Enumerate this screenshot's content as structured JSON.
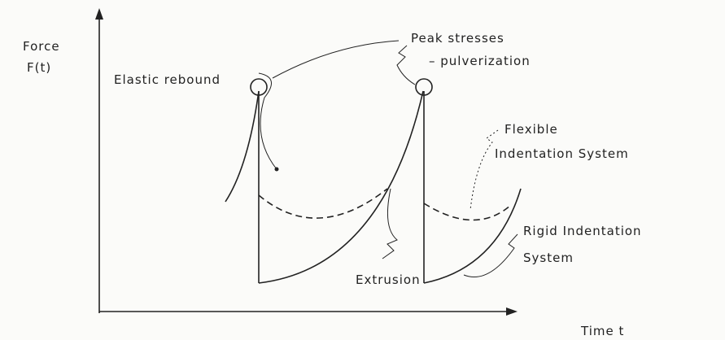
{
  "axes": {
    "y_label": [
      "Force",
      "F(t)"
    ],
    "x_label": "Time t"
  },
  "annotations": {
    "elastic_rebound": "Elastic rebound",
    "peak_stresses": [
      "Peak stresses",
      "– pulverization"
    ],
    "flexible": [
      "Flexible",
      "Indentation System"
    ],
    "rigid": [
      "Rigid Indentation",
      "System"
    ],
    "extrusion": "Extrusion"
  }
}
